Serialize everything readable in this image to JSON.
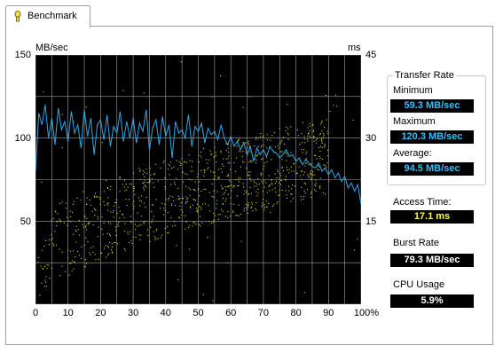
{
  "tab": {
    "label": "Benchmark"
  },
  "chart_data": {
    "type": "line",
    "left_axis_label": "MB/sec",
    "right_axis_label": "ms",
    "left_ylim": [
      0,
      150
    ],
    "right_ylim": [
      0,
      45
    ],
    "left_ticks": [
      "150",
      "100",
      "50"
    ],
    "right_ticks": [
      "45",
      "30",
      "15"
    ],
    "x_ticks": [
      "0",
      "10",
      "20",
      "30",
      "40",
      "50",
      "60",
      "70",
      "80",
      "90",
      "100%"
    ],
    "xlim": [
      0,
      100
    ],
    "grid": true,
    "series": [
      {
        "name": "Transfer Rate",
        "color": "#2ea8e8",
        "x": [
          0,
          1,
          2,
          3,
          4,
          5,
          6,
          7,
          8,
          9,
          10,
          11,
          12,
          13,
          14,
          15,
          16,
          17,
          18,
          19,
          20,
          21,
          22,
          23,
          24,
          25,
          26,
          27,
          28,
          29,
          30,
          31,
          32,
          33,
          34,
          35,
          36,
          37,
          38,
          39,
          40,
          41,
          42,
          43,
          44,
          45,
          46,
          47,
          48,
          49,
          50,
          51,
          52,
          53,
          54,
          55,
          56,
          57,
          58,
          59,
          60,
          61,
          62,
          63,
          64,
          65,
          66,
          67,
          68,
          69,
          70,
          71,
          72,
          73,
          74,
          75,
          76,
          77,
          78,
          79,
          80,
          81,
          82,
          83,
          84,
          85,
          86,
          87,
          88,
          89,
          90,
          91,
          92,
          93,
          94,
          95,
          96,
          97,
          98,
          99,
          100
        ],
        "y": [
          80,
          115,
          108,
          120,
          100,
          112,
          96,
          118,
          105,
          110,
          98,
          116,
          103,
          108,
          94,
          117,
          101,
          112,
          90,
          108,
          111,
          99,
          114,
          95,
          107,
          103,
          116,
          98,
          110,
          100,
          112,
          97,
          109,
          104,
          117,
          93,
          106,
          111,
          96,
          113,
          101,
          108,
          88,
          110,
          103,
          105,
          100,
          114,
          95,
          107,
          104,
          109,
          97,
          106,
          102,
          104,
          99,
          108,
          100,
          96,
          101,
          95,
          98,
          93,
          97,
          90,
          95,
          86,
          94,
          90,
          93,
          89,
          95,
          92,
          91,
          88,
          90,
          93,
          89,
          90,
          86,
          88,
          84,
          87,
          85,
          83,
          82,
          85,
          80,
          82,
          78,
          81,
          76,
          79,
          74,
          77,
          70,
          73,
          68,
          72,
          60
        ]
      }
    ],
    "scatter": {
      "name": "Access Time",
      "color": "#d8d820"
    }
  },
  "stats": {
    "transfer_rate_title": "Transfer Rate",
    "minimum_label": "Minimum",
    "minimum_value": "59.3 MB/sec",
    "maximum_label": "Maximum",
    "maximum_value": "120.3 MB/sec",
    "average_label": "Average:",
    "average_value": "94.5 MB/sec",
    "access_time_label": "Access Time:",
    "access_time_value": "17.1 ms",
    "burst_rate_label": "Burst Rate",
    "burst_rate_value": "79.3 MB/sec",
    "cpu_usage_label": "CPU Usage",
    "cpu_usage_value": "5.9%"
  }
}
